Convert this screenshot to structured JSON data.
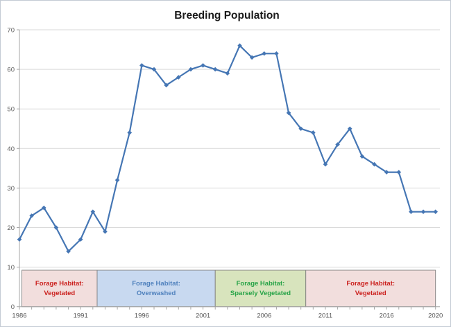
{
  "chart_data": {
    "type": "line",
    "title": "Breeding Population",
    "xlabel": "",
    "ylabel": "",
    "x": [
      1986,
      1987,
      1988,
      1989,
      1990,
      1991,
      1992,
      1993,
      1994,
      1995,
      1996,
      1997,
      1998,
      1999,
      2000,
      2001,
      2002,
      2003,
      2004,
      2005,
      2006,
      2007,
      2008,
      2009,
      2010,
      2011,
      2012,
      2013,
      2014,
      2015,
      2016,
      2017,
      2018,
      2019,
      2020
    ],
    "series": [
      {
        "name": "Breeding Population",
        "color": "#4576b4",
        "values": [
          17,
          23,
          25,
          20,
          14,
          17,
          24,
          19,
          32,
          44,
          61,
          60,
          56,
          58,
          60,
          61,
          60,
          59,
          66,
          63,
          64,
          64,
          49,
          45,
          44,
          36,
          41,
          45,
          38,
          36,
          34,
          34,
          24,
          24,
          24
        ]
      }
    ],
    "ylim": [
      0,
      70
    ],
    "yticks": [
      0,
      10,
      20,
      30,
      40,
      50,
      60,
      70
    ],
    "xticks": [
      1986,
      1991,
      1996,
      2001,
      2006,
      2011,
      2016,
      2020
    ],
    "grid": true,
    "legend": "none",
    "marker": "diamond",
    "bands": [
      {
        "line1": "Forage Habitat:",
        "line2": "Vegetated",
        "start_year": 1986.2,
        "end_year": 1992.35,
        "fill": "#f2dedd",
        "text_color": "#cb201d"
      },
      {
        "line1": "Forage Habitat:",
        "line2": "Overwashed",
        "start_year": 1992.35,
        "end_year": 2002.0,
        "fill": "#c8d9f0",
        "text_color": "#4f81bd"
      },
      {
        "line1": "Forage Habitat:",
        "line2": "Sparsely Vegetated",
        "start_year": 2002.0,
        "end_year": 2009.4,
        "fill": "#d8e4bd",
        "text_color": "#27a347"
      },
      {
        "line1": "Forage Habitat:",
        "line2": "Vegetated",
        "start_year": 2009.4,
        "end_year": 2020.0,
        "fill": "#f2dedd",
        "text_color": "#cb201d"
      }
    ],
    "colors": {
      "grid": "#d9d9d9",
      "axis": "#a6a6a6",
      "tick_label": "#595959",
      "band_border": "#7f7f7f"
    }
  }
}
